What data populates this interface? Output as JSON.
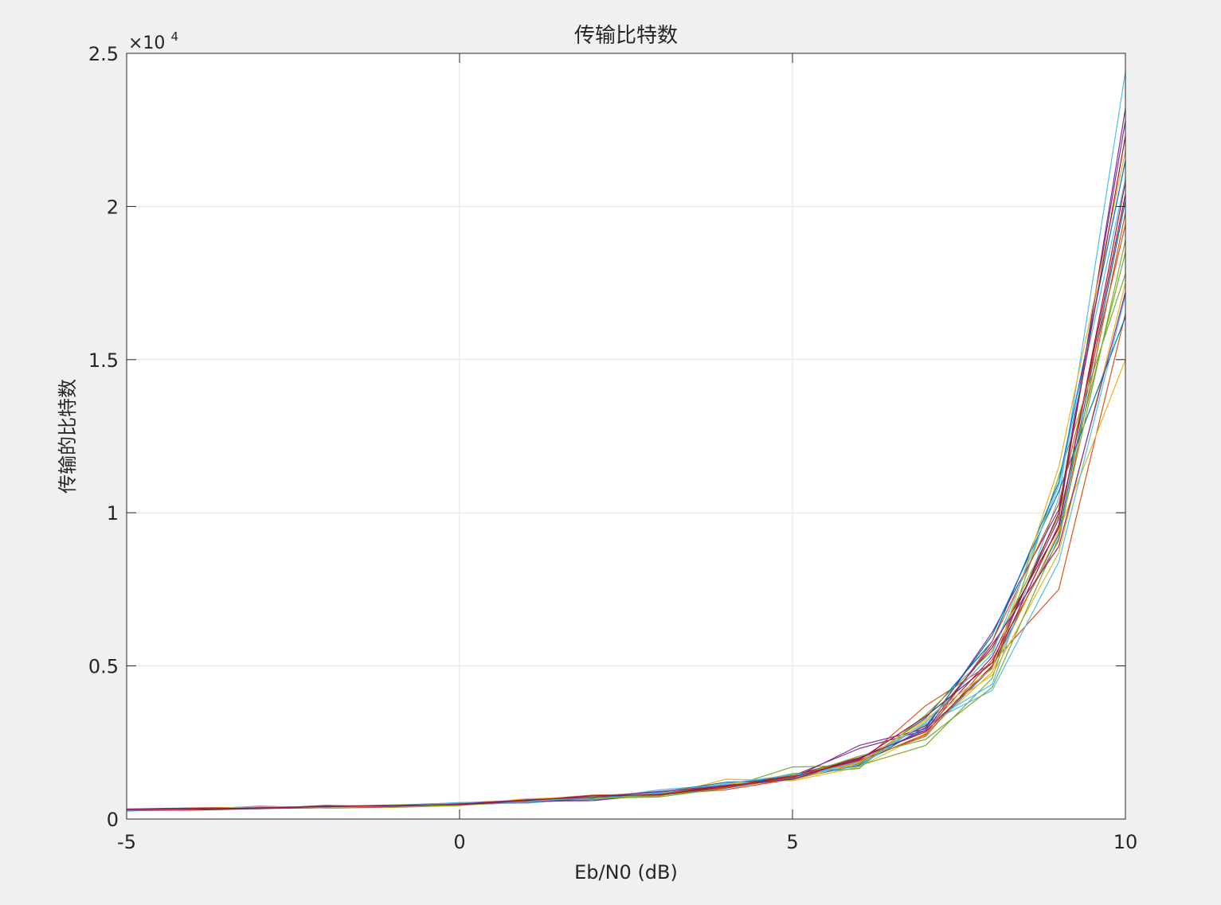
{
  "chart_data": {
    "type": "line",
    "title": "传输比特数",
    "xlabel": "Eb/N0 (dB)",
    "ylabel": "传输的比特数",
    "y_exponent_label": "×10",
    "y_exponent_power": "4",
    "xlim": [
      -5,
      10
    ],
    "ylim": [
      0,
      25000
    ],
    "grid": true,
    "legend": "none",
    "x_ticks": [
      {
        "value": -5,
        "label": "-5"
      },
      {
        "value": 0,
        "label": "0"
      },
      {
        "value": 5,
        "label": "5"
      },
      {
        "value": 10,
        "label": "10"
      }
    ],
    "y_ticks": [
      {
        "value": 0,
        "label": "0"
      },
      {
        "value": 5000,
        "label": "0.5"
      },
      {
        "value": 10000,
        "label": "1"
      },
      {
        "value": 15000,
        "label": "1.5"
      },
      {
        "value": 20000,
        "label": "2"
      },
      {
        "value": 25000,
        "label": "2.5"
      }
    ],
    "x": [
      -5,
      -4,
      -3,
      -2,
      -1,
      0,
      1,
      2,
      3,
      4,
      5,
      6,
      7,
      8,
      9,
      10
    ],
    "series": [
      {
        "color": "#0072bd",
        "values": [
          280,
          320,
          340,
          370,
          400,
          460,
          540,
          640,
          770,
          1010,
          1350,
          1850,
          2780,
          4950,
          9300,
          20200
        ]
      },
      {
        "color": "#d95319",
        "values": [
          300,
          330,
          360,
          380,
          410,
          470,
          550,
          650,
          790,
          960,
          1300,
          1800,
          3700,
          5100,
          7500,
          16500
        ]
      },
      {
        "color": "#edb120",
        "values": [
          320,
          300,
          350,
          400,
          420,
          450,
          570,
          660,
          740,
          1300,
          1250,
          1700,
          2800,
          4800,
          9400,
          15000
        ]
      },
      {
        "color": "#7e2f8e",
        "values": [
          290,
          310,
          420,
          360,
          390,
          490,
          580,
          600,
          810,
          1050,
          1400,
          2300,
          2900,
          5300,
          9800,
          23200
        ]
      },
      {
        "color": "#77ac30",
        "values": [
          310,
          340,
          330,
          450,
          380,
          440,
          610,
          680,
          720,
          1010,
          1700,
          1750,
          2400,
          4600,
          11200,
          17800
        ]
      },
      {
        "color": "#4dbeee",
        "values": [
          260,
          350,
          370,
          390,
          430,
          500,
          520,
          700,
          760,
          1080,
          1330,
          1900,
          3100,
          4400,
          10500,
          24400
        ]
      },
      {
        "color": "#a2142f",
        "values": [
          300,
          290,
          340,
          410,
          440,
          520,
          590,
          710,
          830,
          1020,
          1410,
          1960,
          3050,
          5600,
          9500,
          20800
        ]
      },
      {
        "color": "#0072bd",
        "values": [
          330,
          360,
          380,
          370,
          410,
          480,
          600,
          720,
          800,
          1120,
          1380,
          1800,
          3300,
          5800,
          11000,
          21500
        ]
      },
      {
        "color": "#d95319",
        "values": [
          290,
          320,
          400,
          380,
          400,
          510,
          560,
          690,
          850,
          1060,
          1290,
          1920,
          2700,
          5200,
          9100,
          19800
        ]
      },
      {
        "color": "#edb120",
        "values": [
          310,
          330,
          350,
          420,
          390,
          470,
          620,
          740,
          780,
          1150,
          1450,
          1780,
          3200,
          4700,
          8700,
          17500
        ]
      },
      {
        "color": "#7e2f8e",
        "values": [
          280,
          340,
          360,
          400,
          450,
          530,
          540,
          670,
          880,
          1100,
          1320,
          2400,
          2950,
          6100,
          10100,
          22800
        ]
      },
      {
        "color": "#77ac30",
        "values": [
          320,
          310,
          390,
          390,
          420,
          450,
          580,
          730,
          900,
          1040,
          1480,
          1650,
          3400,
          5500,
          9900,
          18500
        ]
      },
      {
        "color": "#4dbeee",
        "values": [
          300,
          350,
          340,
          430,
          410,
          500,
          640,
          650,
          950,
          1130,
          1360,
          1870,
          3100,
          4200,
          8400,
          17100
        ]
      },
      {
        "color": "#a2142f",
        "values": [
          270,
          300,
          370,
          410,
          430,
          520,
          600,
          760,
          820,
          1090,
          1420,
          2000,
          2850,
          5000,
          9600,
          20400
        ]
      },
      {
        "color": "#0072bd",
        "values": [
          310,
          330,
          350,
          380,
          440,
          480,
          570,
          700,
          870,
          1200,
          1310,
          1760,
          3000,
          6000,
          10700,
          16400
        ]
      },
      {
        "color": "#d95319",
        "values": [
          290,
          360,
          380,
          400,
          400,
          530,
          610,
          780,
          830,
          1030,
          1390,
          1900,
          2750,
          5800,
          10300,
          19400
        ]
      },
      {
        "color": "#edb120",
        "values": [
          330,
          320,
          410,
          370,
          420,
          460,
          660,
          720,
          890,
          1140,
          1270,
          1840,
          3250,
          4900,
          11500,
          21800
        ]
      },
      {
        "color": "#77ac30",
        "values": [
          300,
          340,
          360,
          420,
          460,
          500,
          590,
          690,
          760,
          1070,
          1350,
          2050,
          2600,
          4300,
          9200,
          18900
        ]
      },
      {
        "color": "#4dbeee",
        "values": [
          280,
          310,
          390,
          390,
          430,
          540,
          550,
          750,
          840,
          1160,
          1440,
          1720,
          3150,
          5400,
          10900,
          20900
        ]
      },
      {
        "color": "#7e2f8e",
        "values": [
          320,
          350,
          340,
          440,
          410,
          490,
          630,
          710,
          900,
          1090,
          1300,
          1980,
          2900,
          5700,
          8900,
          17200
        ]
      },
      {
        "color": "#a2142f",
        "values": [
          310,
          320,
          370,
          400,
          450,
          470,
          600,
          760,
          790,
          1060,
          1370,
          1930,
          3350,
          5100,
          10000,
          22300
        ]
      }
    ]
  }
}
